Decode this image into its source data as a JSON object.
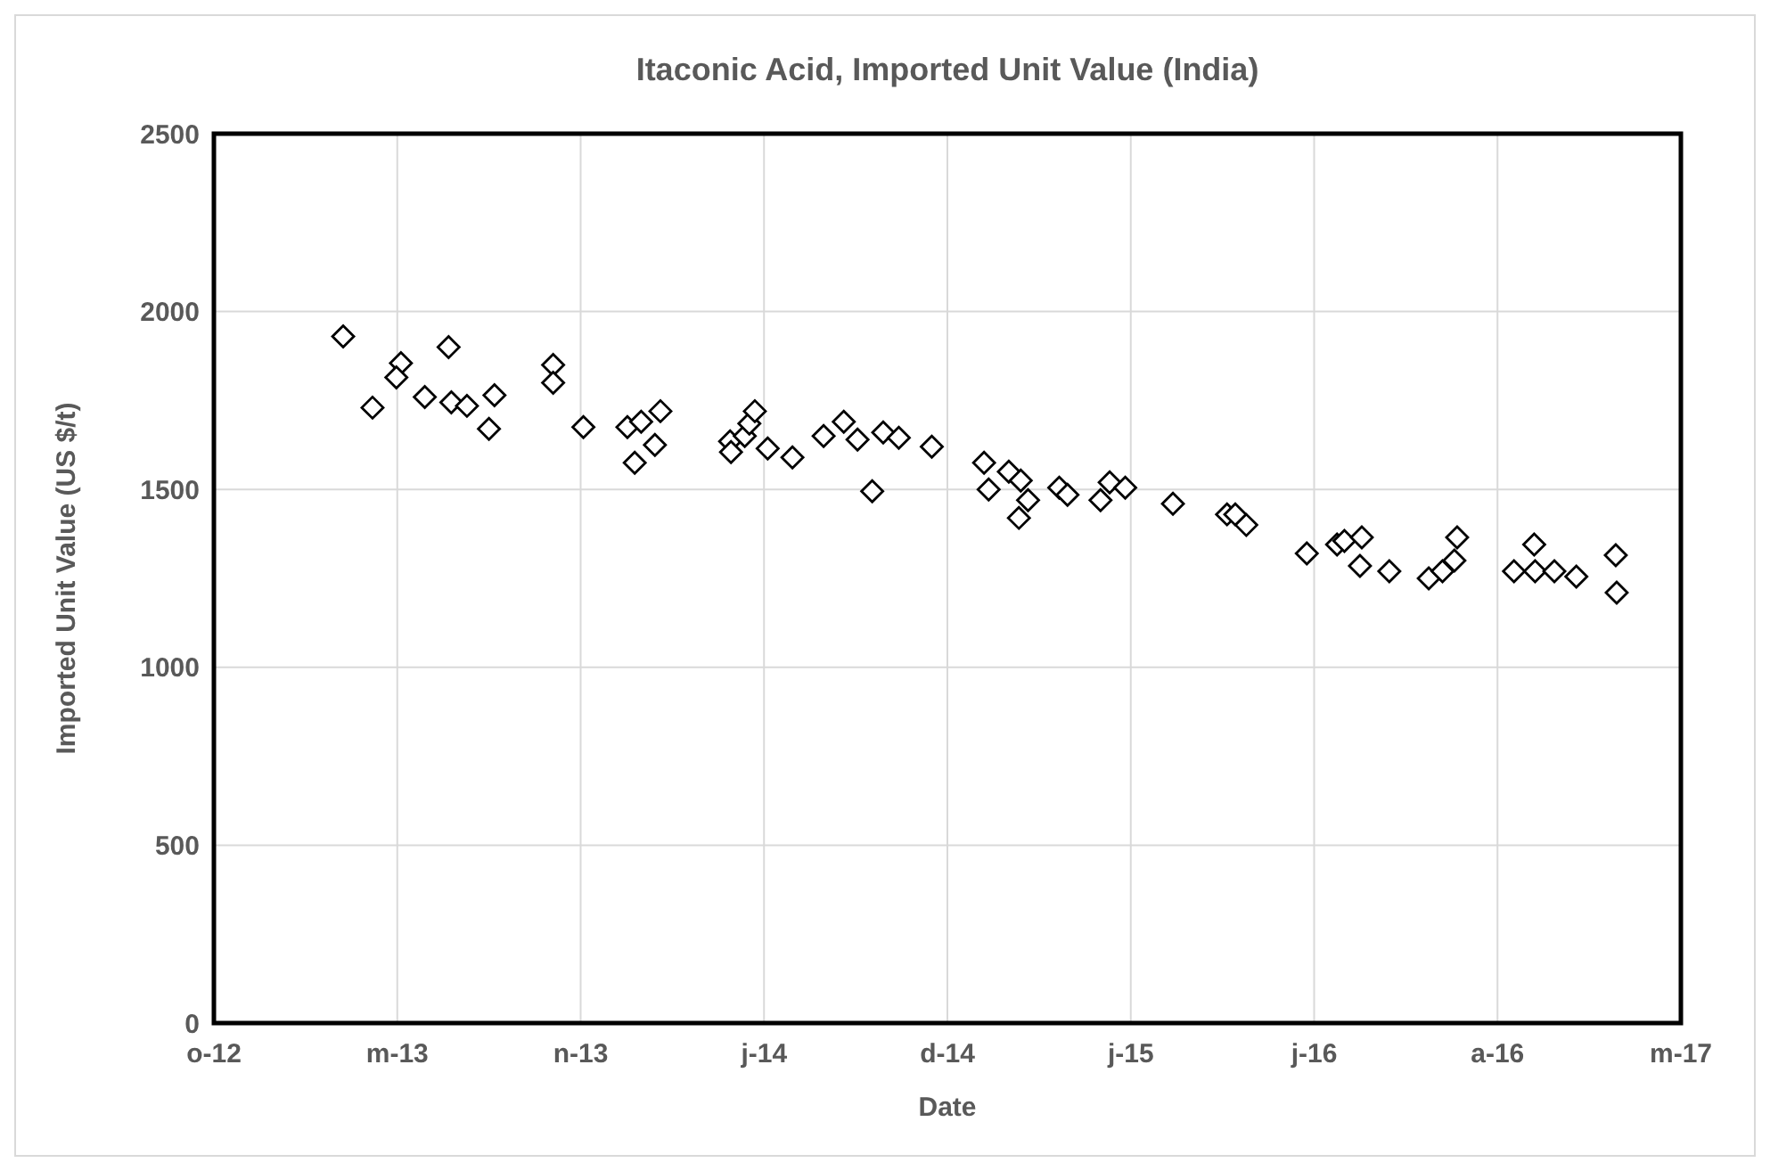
{
  "chart_data": {
    "type": "scatter",
    "title": "Itaconic Acid, Imported Unit Value (India)",
    "xlabel": "Date",
    "ylabel": "Imported Unit Value (US $/t)",
    "xlim": [
      "2012-10-15",
      "2017-03-03"
    ],
    "xticks": [
      {
        "value": "2012-10-15",
        "label": "o-12"
      },
      {
        "value": "2013-05-03",
        "label": "m-13"
      },
      {
        "value": "2013-11-19",
        "label": "n-13"
      },
      {
        "value": "2014-06-07",
        "label": "j-14"
      },
      {
        "value": "2014-12-24",
        "label": "d-14"
      },
      {
        "value": "2015-07-12",
        "label": "j-15"
      },
      {
        "value": "2016-01-28",
        "label": "j-16"
      },
      {
        "value": "2016-08-15",
        "label": "a-16"
      },
      {
        "value": "2017-03-03",
        "label": "m-17"
      }
    ],
    "ylim": [
      0,
      2500
    ],
    "yticks": [
      0,
      500,
      1000,
      1500,
      2000,
      2500
    ],
    "grid": true,
    "marker": "diamond",
    "series": [
      {
        "color": "#000000",
        "x": [
          "2013-03-05",
          "2013-04-06",
          "2013-05-07",
          "2013-05-02",
          "2013-06-28",
          "2013-06-02",
          "2013-07-01",
          "2013-07-18",
          "2013-08-17",
          "2013-08-11",
          "2013-10-20",
          "2013-10-20",
          "2013-11-22",
          "2014-01-09",
          "2014-01-24",
          "2014-02-14",
          "2014-02-08",
          "2014-01-17",
          "2014-05-01",
          "2014-05-02",
          "2014-05-17",
          "2014-05-22",
          "2014-05-28",
          "2014-06-11",
          "2014-07-08",
          "2014-08-11",
          "2014-09-02",
          "2014-09-17",
          "2014-10-15",
          "2014-11-01",
          "2014-10-03",
          "2014-12-07",
          "2015-02-02",
          "2015-02-07",
          "2015-03-01",
          "2015-03-14",
          "2015-03-22",
          "2015-03-12",
          "2015-04-25",
          "2015-05-04",
          "2015-06-09",
          "2015-06-19",
          "2015-07-06",
          "2015-08-27",
          "2015-10-25",
          "2015-11-03",
          "2015-11-15",
          "2016-01-20",
          "2016-02-22",
          "2016-03-01",
          "2016-03-20",
          "2016-03-18",
          "2016-04-19",
          "2016-06-01",
          "2016-06-16",
          "2016-06-29",
          "2016-07-02",
          "2016-09-02",
          "2016-09-24",
          "2016-09-25",
          "2016-10-16",
          "2016-11-09",
          "2016-12-22",
          "2016-12-23"
        ],
        "values": [
          1930,
          1730,
          1855,
          1815,
          1900,
          1760,
          1745,
          1735,
          1765,
          1670,
          1850,
          1800,
          1675,
          1675,
          1690,
          1720,
          1625,
          1575,
          1635,
          1605,
          1650,
          1685,
          1720,
          1615,
          1590,
          1650,
          1690,
          1640,
          1660,
          1645,
          1495,
          1620,
          1575,
          1500,
          1550,
          1525,
          1470,
          1420,
          1505,
          1485,
          1470,
          1520,
          1505,
          1460,
          1430,
          1430,
          1400,
          1320,
          1345,
          1355,
          1365,
          1285,
          1270,
          1250,
          1270,
          1300,
          1365,
          1270,
          1345,
          1270,
          1270,
          1255,
          1315,
          1210
        ]
      }
    ]
  }
}
